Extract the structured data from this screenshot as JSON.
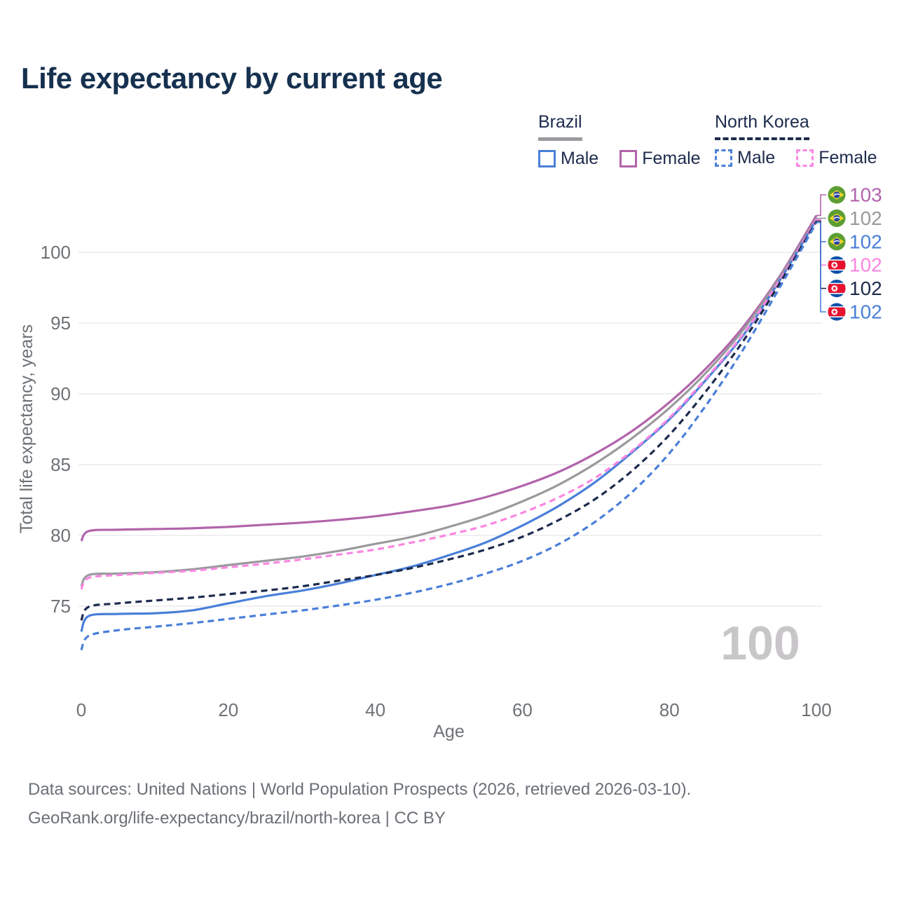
{
  "title": "Life expectancy by current age",
  "legend": {
    "brazil": {
      "label": "Brazil",
      "male_label": "Male",
      "female_label": "Female"
    },
    "north_korea": {
      "label": "North Korea",
      "male_label": "Male",
      "female_label": "Female"
    }
  },
  "colors": {
    "male_blue": "#4a7fd9",
    "female_mauve": "#b264ab",
    "female_pink": "#fb86e1",
    "overall_gray": "#9a9a9e",
    "overall_navy": "#1d2b4d",
    "title_navy": "#16314f",
    "axis_gray": "#6e7276",
    "grid_gray": "#ececee",
    "watermark_gray": "#c9c6c9",
    "footer_gray": "#6b7077"
  },
  "watermark": "100",
  "footer": {
    "line1": "Data sources: United Nations | World Population Prospects (2026, retrieved 2026-03-10).",
    "line2": "GeoRank.org/life-expectancy/brazil/north-korea | CC BY"
  },
  "chart_data": {
    "type": "line",
    "title": "Life expectancy by current age",
    "xlabel": "Age",
    "ylabel": "Total life expectancy, years",
    "xlim": [
      0,
      100
    ],
    "xticks": [
      0,
      20,
      40,
      60,
      80,
      100
    ],
    "yticks": [
      75,
      80,
      85,
      90,
      95,
      100
    ],
    "grid": "horizontal-only",
    "legend_position": "top-right",
    "x": [
      0,
      1,
      5,
      10,
      15,
      20,
      25,
      30,
      35,
      40,
      45,
      50,
      55,
      60,
      65,
      70,
      75,
      80,
      85,
      90,
      95,
      100
    ],
    "series": [
      {
        "name": "Brazil Female",
        "country": "Brazil",
        "sex": "female",
        "line": "solid",
        "color": "#b264ab",
        "flag": "brazil-flag-icon",
        "end_label": "103",
        "values": [
          79.6,
          80.3,
          80.4,
          80.45,
          80.5,
          80.6,
          80.75,
          80.9,
          81.1,
          81.35,
          81.7,
          82.1,
          82.7,
          83.5,
          84.5,
          85.8,
          87.4,
          89.4,
          91.8,
          94.7,
          98.3,
          102.6
        ]
      },
      {
        "name": "Brazil",
        "country": "Brazil",
        "sex": "both",
        "line": "solid",
        "color": "#9a9a9e",
        "flag": "brazil-flag-icon",
        "end_label": "102",
        "values": [
          76.4,
          77.2,
          77.3,
          77.4,
          77.6,
          77.9,
          78.2,
          78.5,
          78.9,
          79.4,
          79.9,
          80.6,
          81.4,
          82.4,
          83.6,
          85.1,
          86.9,
          89.0,
          91.5,
          94.5,
          98.2,
          102.4
        ]
      },
      {
        "name": "Brazil Male",
        "country": "Brazil",
        "sex": "male",
        "line": "solid",
        "color": "#4a7fd9",
        "flag": "brazil-flag-icon",
        "end_label": "102",
        "values": [
          73.2,
          74.3,
          74.45,
          74.5,
          74.7,
          75.2,
          75.7,
          76.1,
          76.6,
          77.2,
          77.8,
          78.6,
          79.5,
          80.7,
          82.1,
          83.8,
          85.9,
          88.2,
          91.0,
          94.1,
          98.0,
          102.3
        ]
      },
      {
        "name": "North Korea Female",
        "country": "North Korea",
        "sex": "female",
        "line": "dashed",
        "color": "#fb86e1",
        "flag": "north-korea-flag-icon",
        "end_label": "102",
        "values": [
          76.2,
          77.0,
          77.2,
          77.35,
          77.5,
          77.75,
          78.0,
          78.3,
          78.65,
          79.0,
          79.5,
          80.05,
          80.7,
          81.6,
          82.7,
          84.1,
          86.0,
          88.3,
          91.1,
          94.2,
          98.0,
          102.3
        ]
      },
      {
        "name": "North Korea",
        "country": "North Korea",
        "sex": "both",
        "line": "dashed",
        "color": "#1d2b4d",
        "flag": "north-korea-flag-icon",
        "end_label": "102",
        "values": [
          74.0,
          74.95,
          75.2,
          75.4,
          75.6,
          75.85,
          76.1,
          76.4,
          76.8,
          77.2,
          77.7,
          78.3,
          79.0,
          79.9,
          81.1,
          82.6,
          84.6,
          87.1,
          90.2,
          93.7,
          97.8,
          102.2
        ]
      },
      {
        "name": "North Korea Male",
        "country": "North Korea",
        "sex": "male",
        "line": "dashed",
        "color": "#4a7fd9",
        "flag": "north-korea-flag-icon",
        "end_label": "102",
        "values": [
          71.9,
          72.9,
          73.3,
          73.55,
          73.8,
          74.1,
          74.4,
          74.7,
          75.05,
          75.45,
          75.95,
          76.55,
          77.3,
          78.2,
          79.4,
          81.0,
          83.1,
          85.8,
          89.2,
          93.1,
          97.5,
          102.1
        ]
      }
    ]
  }
}
